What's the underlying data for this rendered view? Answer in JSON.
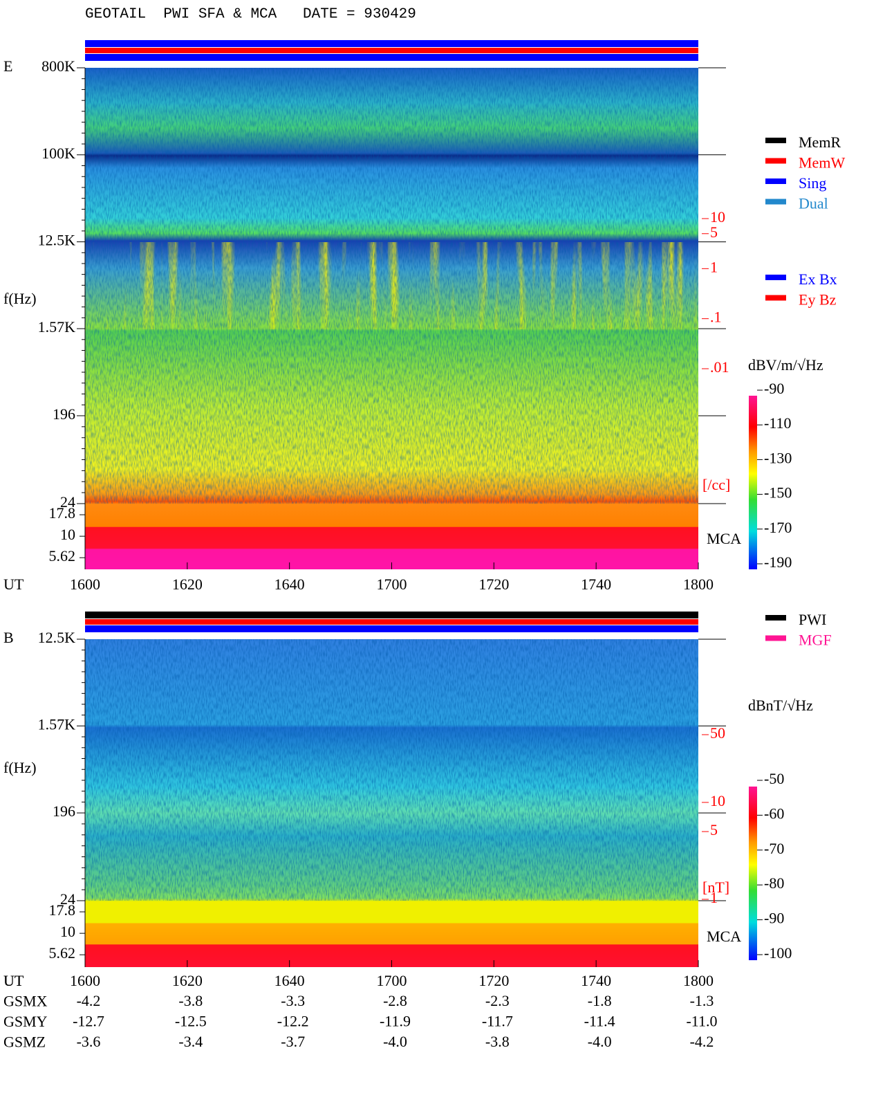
{
  "header": {
    "title": "GEOTAIL  PWI SFA & MCA   DATE = 930429"
  },
  "chart_data": [
    {
      "type": "spectrogram",
      "panel_label": "E",
      "y_label": "f(Hz)",
      "x_label": "UT",
      "log_y": true,
      "ylim": [
        24,
        800000
      ],
      "yticks": [
        {
          "value": 800000,
          "label": "800K"
        },
        {
          "value": 100000,
          "label": "100K"
        },
        {
          "value": 12500,
          "label": "12.5K"
        },
        {
          "value": 1570,
          "label": "1.57K"
        },
        196,
        24
      ],
      "mca_label": "MCA",
      "mca_yticks": [
        17.8,
        10,
        5.62
      ],
      "y2_label": "[/cc]",
      "y2lim": [
        0.01,
        10
      ],
      "y2ticks": [
        10,
        5,
        1,
        {
          "value": 0.1,
          "label": ".1"
        },
        {
          "value": 0.01,
          "label": ".01"
        }
      ],
      "x_tick_labels": [
        "1600",
        "1620",
        "1640",
        "1700",
        "1720",
        "1740",
        "1800"
      ],
      "colorbar": {
        "label": "dBV/m/√Hz",
        "lim": [
          -190,
          -90
        ],
        "ticks": [
          -90,
          -110,
          -130,
          -150,
          -170,
          -190
        ]
      },
      "status_legend": [
        {
          "name": "MemR",
          "color": "#000000"
        },
        {
          "name": "MemW",
          "color": "#ff0000"
        },
        {
          "name": "Sing",
          "color": "#0000ff"
        },
        {
          "name": "Dual",
          "color": "#2288cc"
        }
      ],
      "antenna_legend": [
        {
          "name": "Ex Bx",
          "color": "#0000ff"
        },
        {
          "name": "Ey Bz",
          "color": "#ff0000"
        }
      ]
    },
    {
      "type": "spectrogram",
      "panel_label": "B",
      "y_label": "f(Hz)",
      "x_label": "UT",
      "log_y": true,
      "ylim": [
        24,
        12500
      ],
      "yticks": [
        {
          "value": 12500,
          "label": "12.5K"
        },
        {
          "value": 1570,
          "label": "1.57K"
        },
        196,
        24
      ],
      "mca_label": "MCA",
      "mca_yticks": [
        17.8,
        10,
        5.62
      ],
      "y2_label": "[nT]",
      "y2lim": [
        1,
        50
      ],
      "y2ticks": [
        50,
        10,
        5,
        1
      ],
      "x_tick_labels": [
        "1600",
        "1620",
        "1640",
        "1700",
        "1720",
        "1740",
        "1800"
      ],
      "colorbar": {
        "label": "dBnT/√Hz",
        "lim": [
          -100,
          -50
        ],
        "ticks": [
          -50,
          -60,
          -70,
          -80,
          -90,
          -100
        ]
      },
      "status_legend": [
        {
          "name": "PWI",
          "color": "#000000"
        },
        {
          "name": "MGF",
          "color": "#ff1493"
        }
      ]
    }
  ],
  "orbit": {
    "labels": [
      "UT",
      "GSMX",
      "GSMY",
      "GSMZ"
    ],
    "rows": [
      [
        "-4.2",
        "-3.8",
        "-3.3",
        "-2.8",
        "-2.3",
        "-1.8",
        "-1.3"
      ],
      [
        "-12.7",
        "-12.5",
        "-12.2",
        "-11.9",
        "-11.7",
        "-11.4",
        "-11.0"
      ],
      [
        "-3.6",
        "-3.4",
        "-3.7",
        "-4.0",
        "-3.8",
        "-4.0",
        "-4.2"
      ]
    ]
  }
}
